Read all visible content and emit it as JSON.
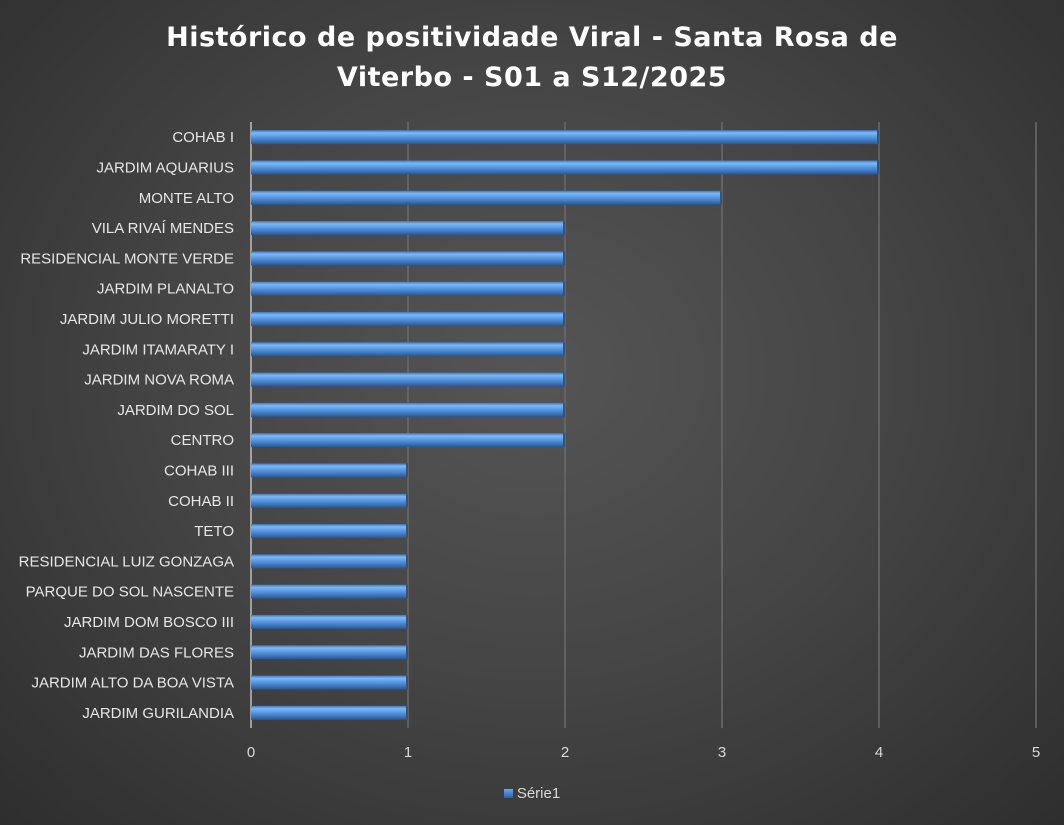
{
  "chart_data": {
    "type": "bar",
    "orientation": "horizontal",
    "title_lines": [
      "Histórico de positividade Viral -  Santa Rosa de",
      "Viterbo - S01 a S12/2025"
    ],
    "categories": [
      "COHAB I",
      "JARDIM AQUARIUS",
      "MONTE ALTO",
      "VILA RIVAÍ MENDES",
      "RESIDENCIAL MONTE VERDE",
      "JARDIM PLANALTO",
      "JARDIM JULIO MORETTI",
      "JARDIM ITAMARATY I",
      "JARDIM NOVA ROMA",
      "JARDIM DO SOL",
      "CENTRO",
      "COHAB III",
      "COHAB II",
      "TETO",
      "RESIDENCIAL LUIZ GONZAGA",
      "PARQUE DO SOL NASCENTE",
      "JARDIM DOM BOSCO III",
      "JARDIM DAS FLORES",
      "JARDIM ALTO DA BOA VISTA",
      "JARDIM GURILANDIA"
    ],
    "series": [
      {
        "name": "Série1",
        "values": [
          4,
          4,
          3,
          2,
          2,
          2,
          2,
          2,
          2,
          2,
          2,
          1,
          1,
          1,
          1,
          1,
          1,
          1,
          1,
          1
        ],
        "color": "#4a8ad8"
      }
    ],
    "xlim": [
      0,
      5
    ],
    "xticks": [
      "0",
      "1",
      "2",
      "3",
      "4",
      "5"
    ],
    "grid": true,
    "legend_position": "bottom"
  }
}
